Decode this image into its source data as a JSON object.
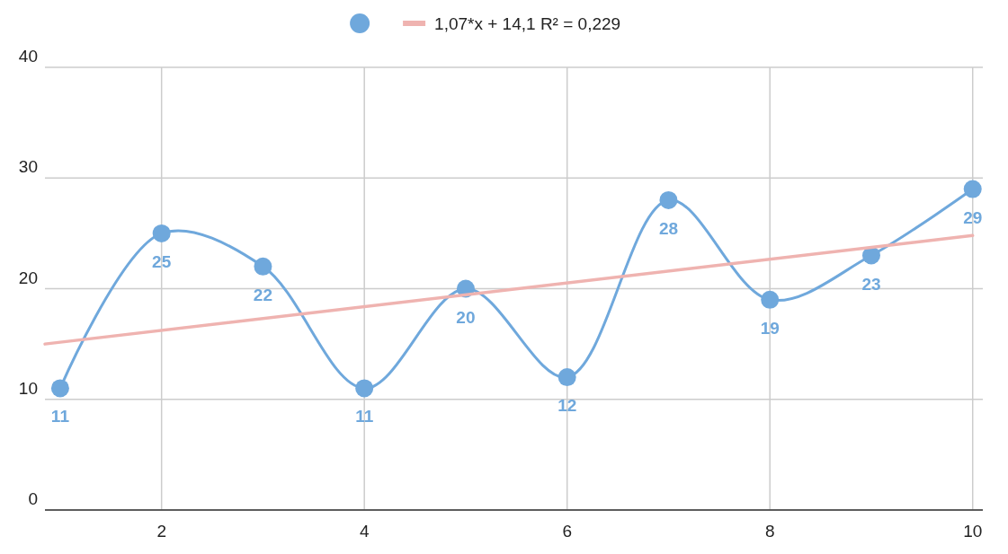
{
  "chart_data": {
    "type": "line",
    "x": [
      1,
      2,
      3,
      4,
      5,
      6,
      7,
      8,
      9,
      10
    ],
    "xlim": [
      0.85,
      10.1
    ],
    "xticks": [
      2,
      4,
      6,
      8,
      10
    ],
    "ylim": [
      0,
      40
    ],
    "yticks": [
      0,
      10,
      20,
      30,
      40
    ],
    "grid": true,
    "legend": "top",
    "marker": "circle",
    "line_style": "solid",
    "series": [
      {
        "color": "#6fa8dc",
        "values": [
          11,
          25,
          22,
          11,
          20,
          12,
          28,
          19,
          23,
          29
        ],
        "value_labels": [
          "11",
          "25",
          "22",
          "11",
          "20",
          "12",
          "28",
          "19",
          "23",
          "29"
        ]
      },
      {
        "name": "1,07*x + 14,1 R² = 0,229",
        "color": "#efb3b0",
        "x": [
          0.85,
          10
        ],
        "values": [
          15.0,
          24.8
        ],
        "marker": "none"
      }
    ]
  }
}
